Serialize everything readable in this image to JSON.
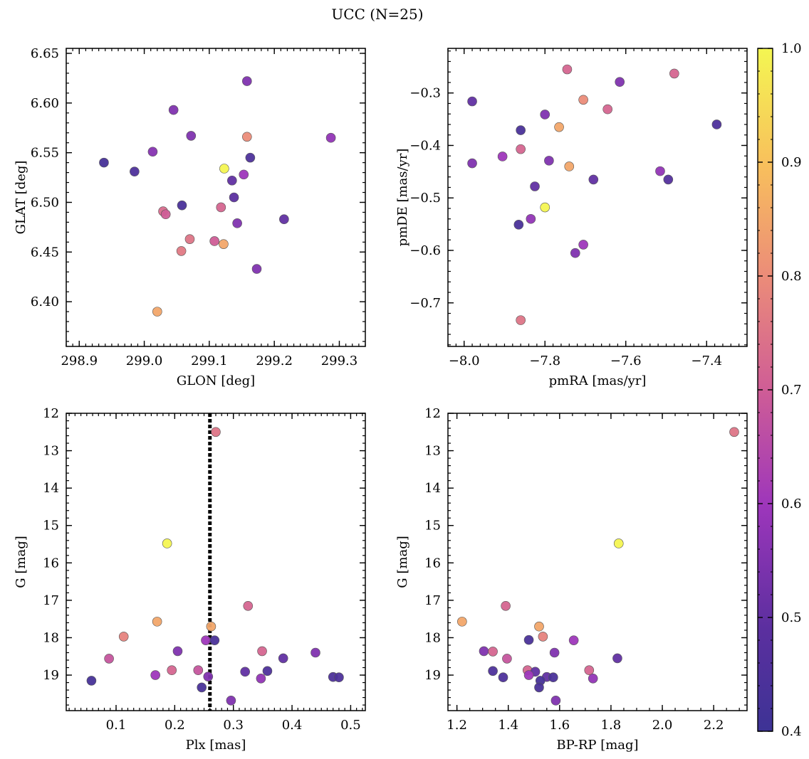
{
  "figure": {
    "title": "UCC (N=25)",
    "colorbar": {
      "range": [
        0.4,
        1.0
      ],
      "ticks": [
        0.4,
        0.5,
        0.6,
        0.7,
        0.8,
        0.9,
        1.0
      ],
      "tick_labels": [
        "0.4",
        "0.5",
        "0.6",
        "0.7",
        "0.8",
        "0.9",
        "1.0"
      ],
      "colormap": "plasma"
    },
    "marker_edge_color": "#555555",
    "vline_color": "#000000"
  },
  "chart_data": [
    {
      "type": "scatter",
      "xlabel": "GLON [deg]",
      "ylabel": "GLAT [deg]",
      "xlim": [
        298.88,
        299.34
      ],
      "ylim": [
        6.355,
        6.655
      ],
      "y_inverted": false,
      "xticks": [
        298.9,
        299.0,
        299.1,
        299.2,
        299.3
      ],
      "xtick_labels": [
        "298.9",
        "299.0",
        "299.1",
        "299.2",
        "299.3"
      ],
      "yticks": [
        6.4,
        6.45,
        6.5,
        6.55,
        6.6,
        6.65
      ],
      "ytick_labels": [
        "6.40",
        "6.45",
        "6.50",
        "6.55",
        "6.60",
        "6.65"
      ],
      "x": [
        298.938,
        298.985,
        299.013,
        299.045,
        299.072,
        299.158,
        299.287,
        299.163,
        299.123,
        299.153,
        299.135,
        299.058,
        299.138,
        299.118,
        299.029,
        299.033,
        299.215,
        299.143,
        299.07,
        299.108,
        299.122,
        299.057,
        299.173,
        299.02,
        299.158
      ],
      "y": [
        6.54,
        6.531,
        6.551,
        6.593,
        6.567,
        6.566,
        6.565,
        6.545,
        6.534,
        6.528,
        6.522,
        6.497,
        6.505,
        6.495,
        6.491,
        6.488,
        6.483,
        6.479,
        6.463,
        6.461,
        6.458,
        6.451,
        6.433,
        6.39,
        6.622
      ],
      "c": [
        0.43,
        0.45,
        0.56,
        0.55,
        0.55,
        0.8,
        0.58,
        0.45,
        1.0,
        0.6,
        0.5,
        0.44,
        0.49,
        0.72,
        0.73,
        0.7,
        0.5,
        0.55,
        0.75,
        0.7,
        0.85,
        0.76,
        0.55,
        0.85,
        0.55
      ]
    },
    {
      "type": "scatter",
      "xlabel": "pmRA [mas/yr]",
      "ylabel": "pmDE [mas/yr]",
      "xlim": [
        -8.04,
        -7.3
      ],
      "ylim": [
        -0.783,
        -0.215
      ],
      "y_inverted": false,
      "xticks": [
        -8.0,
        -7.8,
        -7.6,
        -7.4
      ],
      "xtick_labels": [
        "−8.0",
        "−7.8",
        "−7.6",
        "−7.4"
      ],
      "yticks": [
        -0.7,
        -0.6,
        -0.5,
        -0.4,
        -0.3
      ],
      "ytick_labels": [
        "−0.7",
        "−0.6",
        "−0.5",
        "−0.4",
        "−0.3"
      ],
      "x": [
        -7.98,
        -7.745,
        -7.48,
        -7.615,
        -7.705,
        -7.645,
        -7.8,
        -7.86,
        -7.765,
        -7.375,
        -7.86,
        -7.905,
        -7.98,
        -7.79,
        -7.74,
        -7.515,
        -7.825,
        -7.495,
        -7.68,
        -7.8,
        -7.865,
        -7.835,
        -7.705,
        -7.725,
        -7.86
      ],
      "y": [
        -0.316,
        -0.255,
        -0.263,
        -0.279,
        -0.313,
        -0.331,
        -0.341,
        -0.371,
        -0.365,
        -0.36,
        -0.407,
        -0.421,
        -0.434,
        -0.429,
        -0.44,
        -0.449,
        -0.478,
        -0.465,
        -0.465,
        -0.518,
        -0.551,
        -0.54,
        -0.589,
        -0.605,
        -0.733
      ],
      "c": [
        0.5,
        0.72,
        0.72,
        0.55,
        0.8,
        0.72,
        0.55,
        0.44,
        0.85,
        0.45,
        0.72,
        0.6,
        0.55,
        0.55,
        0.85,
        0.58,
        0.5,
        0.47,
        0.5,
        1.0,
        0.44,
        0.58,
        0.6,
        0.55,
        0.75
      ]
    },
    {
      "type": "scatter",
      "xlabel": "Plx [mas]",
      "ylabel": "G [mag]",
      "xlim": [
        0.015,
        0.525
      ],
      "ylim": [
        19.95,
        12.0
      ],
      "y_inverted": true,
      "vline_x": 0.26,
      "xticks": [
        0.1,
        0.2,
        0.3,
        0.4,
        0.5
      ],
      "xtick_labels": [
        "0.1",
        "0.2",
        "0.3",
        "0.4",
        "0.5"
      ],
      "yticks": [
        12,
        13,
        14,
        15,
        16,
        17,
        18,
        19
      ],
      "ytick_labels": [
        "12",
        "13",
        "14",
        "15",
        "16",
        "17",
        "18",
        "19"
      ],
      "x": [
        0.27,
        0.187,
        0.325,
        0.17,
        0.262,
        0.113,
        0.253,
        0.268,
        0.205,
        0.349,
        0.44,
        0.088,
        0.385,
        0.195,
        0.24,
        0.358,
        0.32,
        0.167,
        0.257,
        0.47,
        0.48,
        0.347,
        0.058,
        0.246,
        0.296
      ],
      "y": [
        12.5,
        15.48,
        17.15,
        17.57,
        17.7,
        17.97,
        18.07,
        18.07,
        18.36,
        18.36,
        18.4,
        18.56,
        18.55,
        18.87,
        18.87,
        18.89,
        18.91,
        19.0,
        19.04,
        19.05,
        19.06,
        19.09,
        19.15,
        19.33,
        19.68
      ],
      "c": [
        0.75,
        1.0,
        0.72,
        0.85,
        0.85,
        0.78,
        0.6,
        0.44,
        0.55,
        0.72,
        0.55,
        0.68,
        0.5,
        0.72,
        0.68,
        0.45,
        0.5,
        0.6,
        0.55,
        0.45,
        0.45,
        0.58,
        0.43,
        0.44,
        0.55
      ]
    },
    {
      "type": "scatter",
      "xlabel": "BP-RP [mag]",
      "ylabel": "G [mag]",
      "xlim": [
        1.165,
        2.33
      ],
      "ylim": [
        19.95,
        12.0
      ],
      "y_inverted": true,
      "xticks": [
        1.2,
        1.4,
        1.6,
        1.8,
        2.0,
        2.2
      ],
      "xtick_labels": [
        "1.2",
        "1.4",
        "1.6",
        "1.8",
        "2.0",
        "2.2"
      ],
      "yticks": [
        12,
        13,
        14,
        15,
        16,
        17,
        18,
        19
      ],
      "ytick_labels": [
        "12",
        "13",
        "14",
        "15",
        "16",
        "17",
        "18",
        "19"
      ],
      "x": [
        2.28,
        1.83,
        1.39,
        1.22,
        1.52,
        1.535,
        1.48,
        1.655,
        1.305,
        1.34,
        1.58,
        1.395,
        1.825,
        1.475,
        1.715,
        1.34,
        1.505,
        1.48,
        1.55,
        1.38,
        1.575,
        1.73,
        1.525,
        1.52,
        1.585
      ],
      "y": [
        12.5,
        15.48,
        17.15,
        17.57,
        17.7,
        17.97,
        18.06,
        18.07,
        18.36,
        18.37,
        18.4,
        18.56,
        18.55,
        18.87,
        18.87,
        18.89,
        18.91,
        19.0,
        19.05,
        19.06,
        19.06,
        19.09,
        19.15,
        19.33,
        19.68
      ],
      "c": [
        0.75,
        1.0,
        0.72,
        0.85,
        0.85,
        0.78,
        0.44,
        0.6,
        0.55,
        0.72,
        0.55,
        0.68,
        0.5,
        0.72,
        0.72,
        0.45,
        0.5,
        0.6,
        0.5,
        0.45,
        0.44,
        0.58,
        0.43,
        0.44,
        0.55
      ]
    }
  ]
}
